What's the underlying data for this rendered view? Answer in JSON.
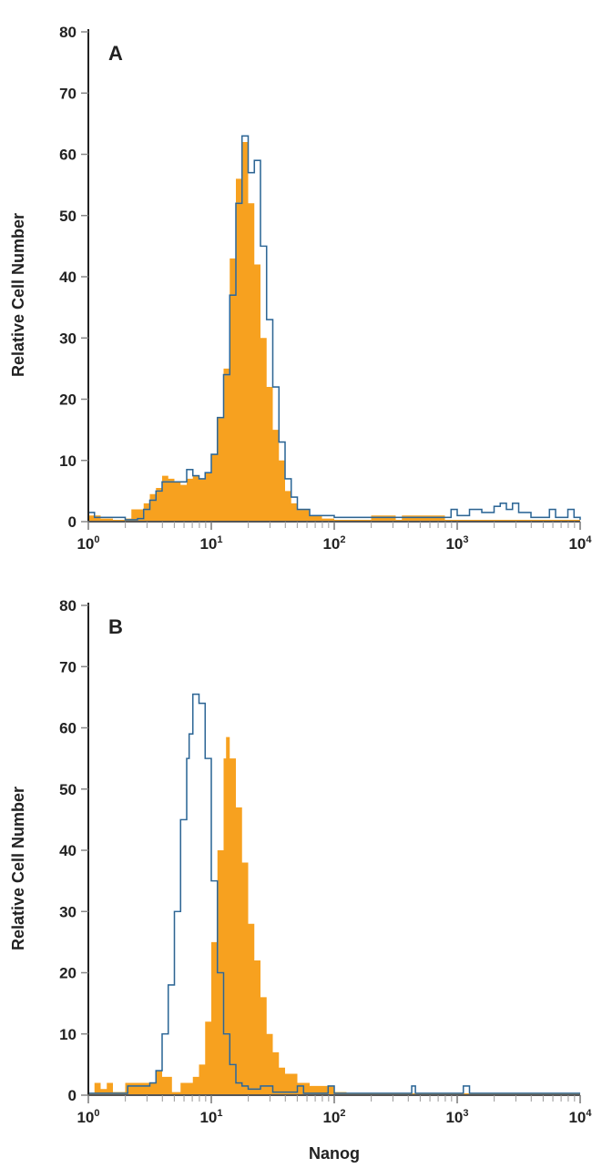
{
  "chart_data": [
    {
      "type": "histogram",
      "panel_label": "A",
      "ylabel": "Relative Cell Number",
      "xlabel": "",
      "xscale": "log",
      "xlim": [
        1,
        10000
      ],
      "ylim": [
        0,
        80
      ],
      "yticks": [
        "0",
        "10",
        "20",
        "30",
        "40",
        "50",
        "60",
        "70",
        "80"
      ],
      "xticks": [
        {
          "base": "10",
          "exp": "0"
        },
        {
          "base": "10",
          "exp": "1"
        },
        {
          "base": "10",
          "exp": "2"
        },
        {
          "base": "10",
          "exp": "3"
        },
        {
          "base": "10",
          "exp": "4"
        }
      ],
      "series": [
        {
          "name": "filled",
          "style": "filled",
          "color": "#F7A11F",
          "x_log10": [
            0.0,
            0.1,
            0.2,
            0.3,
            0.35,
            0.4,
            0.45,
            0.5,
            0.55,
            0.6,
            0.65,
            0.7,
            0.75,
            0.8,
            0.85,
            0.9,
            0.95,
            1.0,
            1.05,
            1.1,
            1.15,
            1.2,
            1.25,
            1.3,
            1.35,
            1.4,
            1.45,
            1.5,
            1.55,
            1.6,
            1.65,
            1.7,
            1.8,
            1.9,
            2.0,
            2.3,
            2.5,
            2.55,
            2.9,
            3.0,
            3.5,
            4.0
          ],
          "values": [
            1,
            0.5,
            0.3,
            0.5,
            2,
            2,
            3,
            4.5,
            5.5,
            7.5,
            7,
            6.5,
            6,
            7,
            7.5,
            7,
            8,
            11,
            17,
            25,
            43,
            56,
            62,
            52,
            42,
            30,
            22,
            15,
            10,
            5,
            3,
            2,
            1,
            0.5,
            0.3,
            1,
            0.3,
            1,
            0.3,
            0.3,
            0.3,
            0.3
          ]
        },
        {
          "name": "outline",
          "style": "line",
          "color": "#3A7AB0",
          "x_log10": [
            0.0,
            0.05,
            0.3,
            0.4,
            0.45,
            0.5,
            0.55,
            0.6,
            0.7,
            0.8,
            0.85,
            0.9,
            0.95,
            1.0,
            1.05,
            1.1,
            1.15,
            1.2,
            1.25,
            1.3,
            1.35,
            1.4,
            1.45,
            1.5,
            1.55,
            1.6,
            1.65,
            1.7,
            1.8,
            2.0,
            2.5,
            2.9,
            2.95,
            3.0,
            3.1,
            3.2,
            3.3,
            3.35,
            3.4,
            3.45,
            3.5,
            3.6,
            3.75,
            3.8,
            3.9,
            3.95,
            4.0
          ],
          "values": [
            1.5,
            0.7,
            0.3,
            0.5,
            2,
            3.5,
            5,
            6.5,
            6.5,
            8.5,
            7.5,
            7,
            8,
            11,
            17,
            24,
            37,
            52,
            63,
            57,
            59,
            45,
            33,
            22,
            13,
            7,
            4,
            2,
            1,
            0.7,
            0.7,
            0.7,
            2,
            1,
            2,
            1.5,
            2.5,
            3,
            2,
            3,
            1.5,
            0.7,
            2,
            0.7,
            2,
            0.7,
            0.3
          ]
        }
      ]
    },
    {
      "type": "histogram",
      "panel_label": "B",
      "ylabel": "Relative Cell Number",
      "xlabel": "Nanog",
      "xscale": "log",
      "xlim": [
        1,
        10000
      ],
      "ylim": [
        0,
        80
      ],
      "yticks": [
        "0",
        "10",
        "20",
        "30",
        "40",
        "50",
        "60",
        "70",
        "80"
      ],
      "xticks": [
        {
          "base": "10",
          "exp": "0"
        },
        {
          "base": "10",
          "exp": "1"
        },
        {
          "base": "10",
          "exp": "2"
        },
        {
          "base": "10",
          "exp": "3"
        },
        {
          "base": "10",
          "exp": "4"
        }
      ],
      "series": [
        {
          "name": "filled",
          "style": "filled",
          "color": "#F7A11F",
          "x_log10": [
            0.0,
            0.05,
            0.1,
            0.15,
            0.2,
            0.3,
            0.4,
            0.5,
            0.55,
            0.6,
            0.68,
            0.75,
            0.85,
            0.9,
            0.95,
            1.0,
            1.05,
            1.1,
            1.12,
            1.15,
            1.2,
            1.25,
            1.3,
            1.35,
            1.4,
            1.45,
            1.5,
            1.55,
            1.6,
            1.7,
            1.8,
            1.9,
            2.0,
            2.1,
            4.0
          ],
          "values": [
            0.3,
            2,
            1,
            2,
            0.5,
            2,
            2,
            2,
            4,
            3,
            0.5,
            2,
            3,
            5,
            12,
            25,
            40,
            55,
            58.5,
            55,
            47,
            38,
            28,
            22,
            16,
            10,
            7,
            4.5,
            3.5,
            2,
            1.5,
            1.5,
            0.5,
            0.3,
            0.3
          ]
        },
        {
          "name": "outline",
          "style": "line",
          "color": "#3A7AB0",
          "x_log10": [
            0.0,
            0.3,
            0.32,
            0.45,
            0.5,
            0.55,
            0.6,
            0.65,
            0.7,
            0.75,
            0.8,
            0.82,
            0.85,
            0.9,
            0.95,
            1.0,
            1.05,
            1.1,
            1.15,
            1.2,
            1.25,
            1.3,
            1.4,
            1.5,
            1.7,
            1.75,
            1.95,
            2.0,
            2.6,
            2.63,
            2.66,
            3.05,
            3.1,
            4.0
          ],
          "values": [
            0.3,
            0.3,
            1.5,
            1.5,
            2,
            4,
            10,
            18,
            30,
            45,
            55,
            59,
            65.5,
            64,
            55,
            35,
            20,
            10,
            5,
            2,
            1.5,
            1,
            1.5,
            0.5,
            1.5,
            0.3,
            1.5,
            0.3,
            0.3,
            1.5,
            0.3,
            1.5,
            0.3,
            0.3
          ]
        }
      ]
    }
  ]
}
